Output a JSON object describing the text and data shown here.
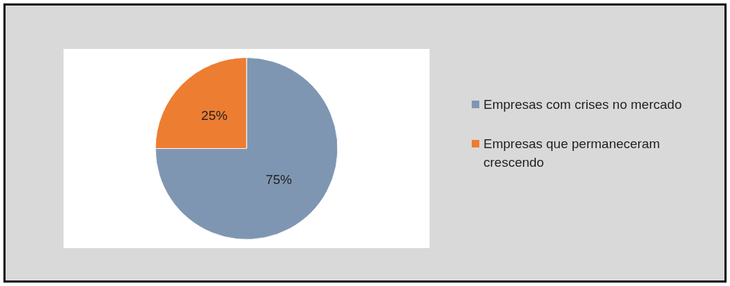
{
  "chart_data": {
    "type": "pie",
    "categories": [
      "Empresas com crises no mercado",
      "Empresas que permaneceram crescendo"
    ],
    "values": [
      75,
      25
    ],
    "colors": [
      "#7f96b2",
      "#ed7d31"
    ],
    "value_labels": [
      "75%",
      "25%"
    ],
    "legend": "right"
  }
}
